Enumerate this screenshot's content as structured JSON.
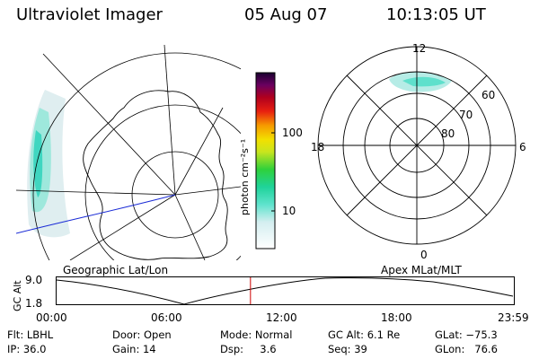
{
  "header": {
    "instrument": "Ultraviolet Imager",
    "date": "05 Aug 07",
    "time": "10:13:05 UT"
  },
  "geographic_panel": {
    "label": "Geographic Lat/Lon"
  },
  "colorbar": {
    "unit_label": "photon cm⁻²s⁻¹",
    "ticks": [
      "100",
      "10"
    ]
  },
  "polar_panel": {
    "label": "Apex MLat/MLT",
    "mlt_labels": [
      "12",
      "18",
      "6",
      "0"
    ],
    "mlat_labels": [
      "60",
      "70",
      "80"
    ]
  },
  "timeline": {
    "ylabel": "GC Alt",
    "yticks": [
      "9.0",
      "1.8"
    ],
    "xticks": [
      "00:00",
      "06:00",
      "12:00",
      "18:00",
      "23:59"
    ],
    "marker_fraction": 0.424
  },
  "info": {
    "flt": "Flt: LBHL",
    "ip": "IP: 36.0",
    "door": "Door: Open",
    "gain": "Gain: 14",
    "mode": "Mode: Normal",
    "dsp": "Dsp:     3.6",
    "gcalt": "GC Alt: 6.1 Re",
    "seq": "Seq: 39",
    "glat": "GLat: −75.3",
    "glon": "GLon:   76.6"
  }
}
